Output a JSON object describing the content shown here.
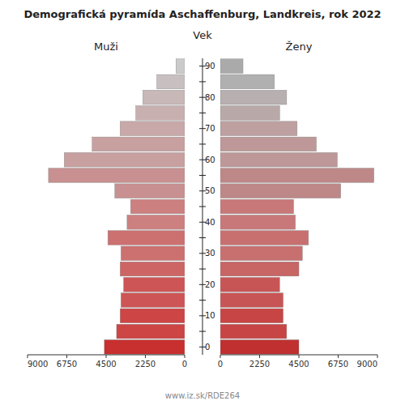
{
  "chart_data": {
    "type": "bar",
    "orientation": "horizontal",
    "title": "Demografická pyramída Aschaffenburg, Landkreis, rok 2022",
    "ylabel": "Vek",
    "annotations": [
      "www.iz.sk/RDE264"
    ],
    "categories": [
      0,
      null,
      10,
      null,
      20,
      null,
      30,
      null,
      40,
      null,
      50,
      null,
      60,
      null,
      70,
      null,
      80,
      null,
      90
    ],
    "series": [
      {
        "name": "Muži",
        "values": [
          4600,
          3900,
          3700,
          3650,
          3500,
          3700,
          3650,
          4400,
          3300,
          3100,
          4000,
          7800,
          6900,
          5300,
          3700,
          2800,
          2400,
          1600,
          500
        ],
        "colors": [
          "#c83030",
          "#cd4545",
          "#cd4545",
          "#cd5555",
          "#cd5555",
          "#cd6565",
          "#cd7070",
          "#cd7070",
          "#cd8080",
          "#cd8080",
          "#c89090",
          "#c89090",
          "#c8a0a0",
          "#c8a0a0",
          "#c8a8a8",
          "#c8b0b0",
          "#c8b8b8",
          "#c8c0c0",
          "#cacaca"
        ]
      },
      {
        "name": "Ženy",
        "values": [
          4500,
          3800,
          3600,
          3600,
          3400,
          4500,
          4700,
          5050,
          4300,
          4200,
          6900,
          8800,
          6700,
          5500,
          4400,
          3400,
          3800,
          3100,
          1300
        ],
        "colors": [
          "#c03030",
          "#c84545",
          "#c84545",
          "#c85555",
          "#c85555",
          "#c86565",
          "#c87070",
          "#c87070",
          "#c87878",
          "#c87878",
          "#be8888",
          "#be8888",
          "#be9898",
          "#be9898",
          "#bea0a0",
          "#b8a8a8",
          "#b8b0b0",
          "#b0b0b0",
          "#aaaaaa"
        ]
      }
    ],
    "xlim": [
      0,
      9000
    ],
    "xticks": [
      0,
      2250,
      4500,
      6750,
      9000
    ],
    "grid": false
  }
}
